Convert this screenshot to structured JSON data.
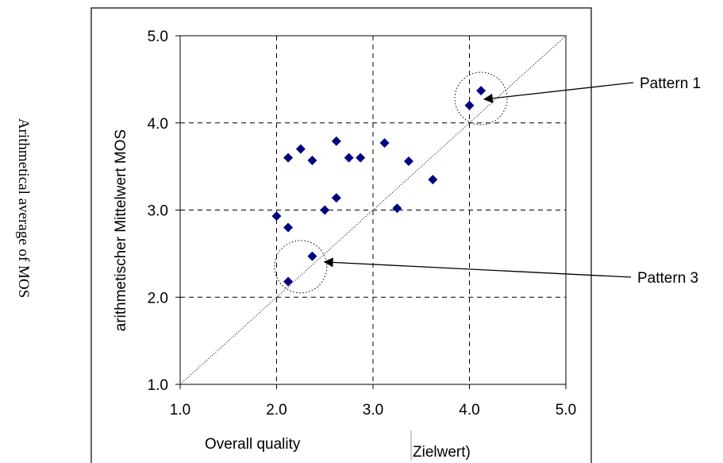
{
  "chart_data": {
    "type": "scatter",
    "xlabel": "Overall quality",
    "xlabel_fragment": "Zielwert)",
    "ylabel": "arithmetischer Mittelwert MOS",
    "outer_ylabel": "Arithmetical average of MOS",
    "xlim": [
      1.0,
      5.0
    ],
    "ylim": [
      1.0,
      5.0
    ],
    "x_ticks": [
      "1.0",
      "2.0",
      "3.0",
      "4.0",
      "5.0"
    ],
    "y_ticks": [
      "1.0",
      "2.0",
      "3.0",
      "4.0",
      "5.0"
    ],
    "grid": true,
    "diagonal_reference": true,
    "marker_color": "#000080",
    "points": [
      {
        "x": 2.0,
        "y": 2.93
      },
      {
        "x": 2.12,
        "y": 2.8
      },
      {
        "x": 2.12,
        "y": 3.6
      },
      {
        "x": 2.12,
        "y": 2.18
      },
      {
        "x": 2.25,
        "y": 3.7
      },
      {
        "x": 2.37,
        "y": 3.57
      },
      {
        "x": 2.37,
        "y": 2.47
      },
      {
        "x": 2.5,
        "y": 3.0
      },
      {
        "x": 2.62,
        "y": 3.79
      },
      {
        "x": 2.62,
        "y": 3.14
      },
      {
        "x": 2.75,
        "y": 3.6
      },
      {
        "x": 2.87,
        "y": 3.6
      },
      {
        "x": 3.12,
        "y": 3.77
      },
      {
        "x": 3.25,
        "y": 3.02
      },
      {
        "x": 3.37,
        "y": 3.56
      },
      {
        "x": 3.62,
        "y": 3.35
      },
      {
        "x": 4.0,
        "y": 4.2
      },
      {
        "x": 4.12,
        "y": 4.37
      }
    ],
    "annotations": [
      {
        "text": "Pattern 1",
        "circle_center": [
          4.12,
          4.28
        ],
        "circle_radius": 0.3
      },
      {
        "text": "Pattern 3",
        "circle_center": [
          2.25,
          2.35
        ],
        "circle_radius": 0.3
      }
    ]
  }
}
